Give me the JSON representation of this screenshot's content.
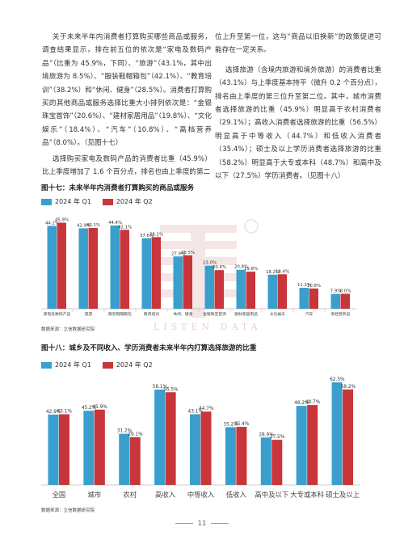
{
  "text": {
    "left_paragraphs": [
      "关于未来半年内消费者打算购买哪些商品或服务，调查结果显示，排在前五位的依次是“家电及数码产品”（比重为 45.9%，下同）、“旅游”（43.1%，其中出境旅游为 8.5%）、“服装鞋帽箱包”（42.1%）、“教育培训”（38.2%）和“休闲、健身”（28.5%）。消费者打算购买的其他商品或服务选择比重大小排列依次是：“金银珠宝首饰”（20.6%）、“建材家居用品”（19.8%）、“文化娱乐”（18.4%）、“汽车”（10.8%）、“高档营养品”（8.0%）。（见图十七）",
      "选择购买家电及数码产品的消费者比重（45.9%）比上季度增加了 1.6 个百分点，排名也由上季度的第二"
    ],
    "right_paragraphs": [
      "位上升至第一位，这与“商品以旧换新”的政策促进可能存在一定关系。",
      "选择旅游（含境内旅游和境外旅游）的消费者比重（43.1%）与上季度基本持平（微升 0.2 个百分点），排名由上季度的第三位升至第二位。其中，城市消费者选择旅游的比重（45.9%）明显高于农村消费者（29.1%）；高收入消费者选择旅游的比重（56.5%）明显高于中等收入（44.7%）和低收入消费者（35.4%）；硕士及以上学历消费者选择旅游的比重（58.2%）明显高于大专或本科（48.7%）和高中及以下（27.5%）学历消费者。（见图十八）"
    ]
  },
  "figures": {
    "fig17_title": "图十七：未来半年内消费者打算购买的商品或服务",
    "fig18_title": "图十八：城乡及不同收入、学历消费者未来半年内打算选择旅游的比重",
    "legend_q1": "2024 年 Q1",
    "legend_q2": "2024 年 Q2",
    "source": "数据来源：立信数据研究院"
  },
  "colors": {
    "q1": "#3a9fcc",
    "q2": "#c8353a"
  },
  "footer": {
    "page": "11"
  },
  "watermark": {
    "text": "LISTEN DATA"
  },
  "chart_data": [
    {
      "type": "bar",
      "categories": [
        "家电及数码产品",
        "旅游",
        "服装鞋帽箱包",
        "教育培训",
        "休闲、健身",
        "金银珠宝首饰",
        "建材家居用品",
        "文化娱乐",
        "汽车",
        "高档营养品"
      ],
      "series": [
        {
          "name": "2024 年 Q1",
          "values": [
            44.2,
            42.9,
            44.4,
            37.6,
            27.9,
            23.0,
            20.8,
            18.2,
            11.2,
            7.9
          ]
        },
        {
          "name": "2024 年 Q2",
          "values": [
            45.9,
            43.1,
            42.1,
            38.2,
            28.5,
            20.6,
            19.8,
            18.4,
            10.8,
            8.0
          ]
        }
      ],
      "ylim": [
        0,
        50
      ],
      "grid": false,
      "legend": "top-left"
    },
    {
      "type": "bar",
      "categories": [
        "全国",
        "城市",
        "农村",
        "高收入",
        "中等收入",
        "低收入",
        "高中及以下",
        "大专或本科",
        "硕士及以上"
      ],
      "series": [
        {
          "name": "2024 年 Q1",
          "values": [
            42.9,
            45.2,
            31.2,
            58.1,
            43.1,
            35.2,
            28.9,
            48.2,
            62.5
          ]
        },
        {
          "name": "2024 年 Q2",
          "values": [
            43.1,
            45.9,
            29.1,
            56.5,
            44.7,
            35.4,
            27.5,
            48.7,
            58.2
          ]
        }
      ],
      "ylim": [
        0,
        65
      ],
      "grid": false,
      "legend": "top-left"
    }
  ]
}
